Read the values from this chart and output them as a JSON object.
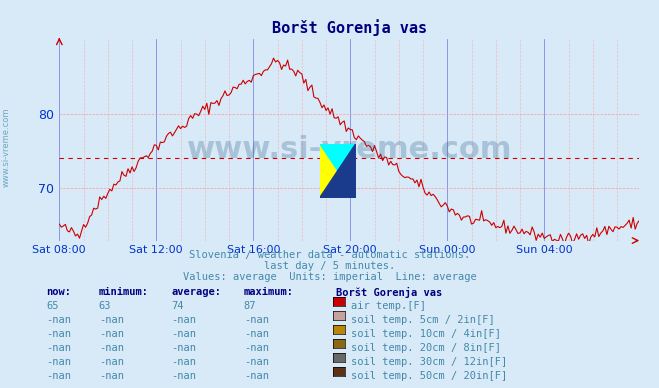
{
  "title": "Boršt Gorenja vas",
  "bg_color": "#d8eaf8",
  "plot_bg_color": "#d8eaf8",
  "line_color": "#cc0000",
  "avg_line_color": "#cc0000",
  "avg_line_style": "dashed",
  "avg_value": 74,
  "ylim": [
    63,
    90
  ],
  "yticks": [
    70,
    80
  ],
  "ylabel_color": "#0033cc",
  "xlabel_color": "#0033cc",
  "grid_color": "#ff9999",
  "grid_major_color": "#0000cc",
  "subtitle_lines": [
    "Slovenia / weather data - automatic stations.",
    "last day / 5 minutes.",
    "Values: average  Units: imperial  Line: average"
  ],
  "subtitle_color": "#4488aa",
  "xtick_labels": [
    "Sat 08:00",
    "Sat 12:00",
    "Sat 16:00",
    "Sat 20:00",
    "Sun 00:00",
    "Sun 04:00"
  ],
  "xtick_positions": [
    0,
    48,
    96,
    144,
    192,
    240
  ],
  "total_points": 288,
  "watermark": "www.si-vreme.com",
  "watermark_color": "#1a5276",
  "legend_title": "Boršt Gorenja vas",
  "legend_title_color": "#000080",
  "legend_items": [
    {
      "label": "air temp.[F]",
      "color": "#cc0000"
    },
    {
      "label": "soil temp. 5cm / 2in[F]",
      "color": "#c8a0a0"
    },
    {
      "label": "soil temp. 10cm / 4in[F]",
      "color": "#b8860b"
    },
    {
      "label": "soil temp. 20cm / 8in[F]",
      "color": "#8b6914"
    },
    {
      "label": "soil temp. 30cm / 12in[F]",
      "color": "#696969"
    },
    {
      "label": "soil temp. 50cm / 20in[F]",
      "color": "#5c3317"
    }
  ],
  "table_headers": [
    "now:",
    "minimum:",
    "average:",
    "maximum:"
  ],
  "table_row1": [
    "65",
    "63",
    "74",
    "87"
  ],
  "table_nan_rows": 5,
  "now_color": "#cc0000",
  "table_text_color": "#4488aa",
  "table_bold_color": "#000080"
}
